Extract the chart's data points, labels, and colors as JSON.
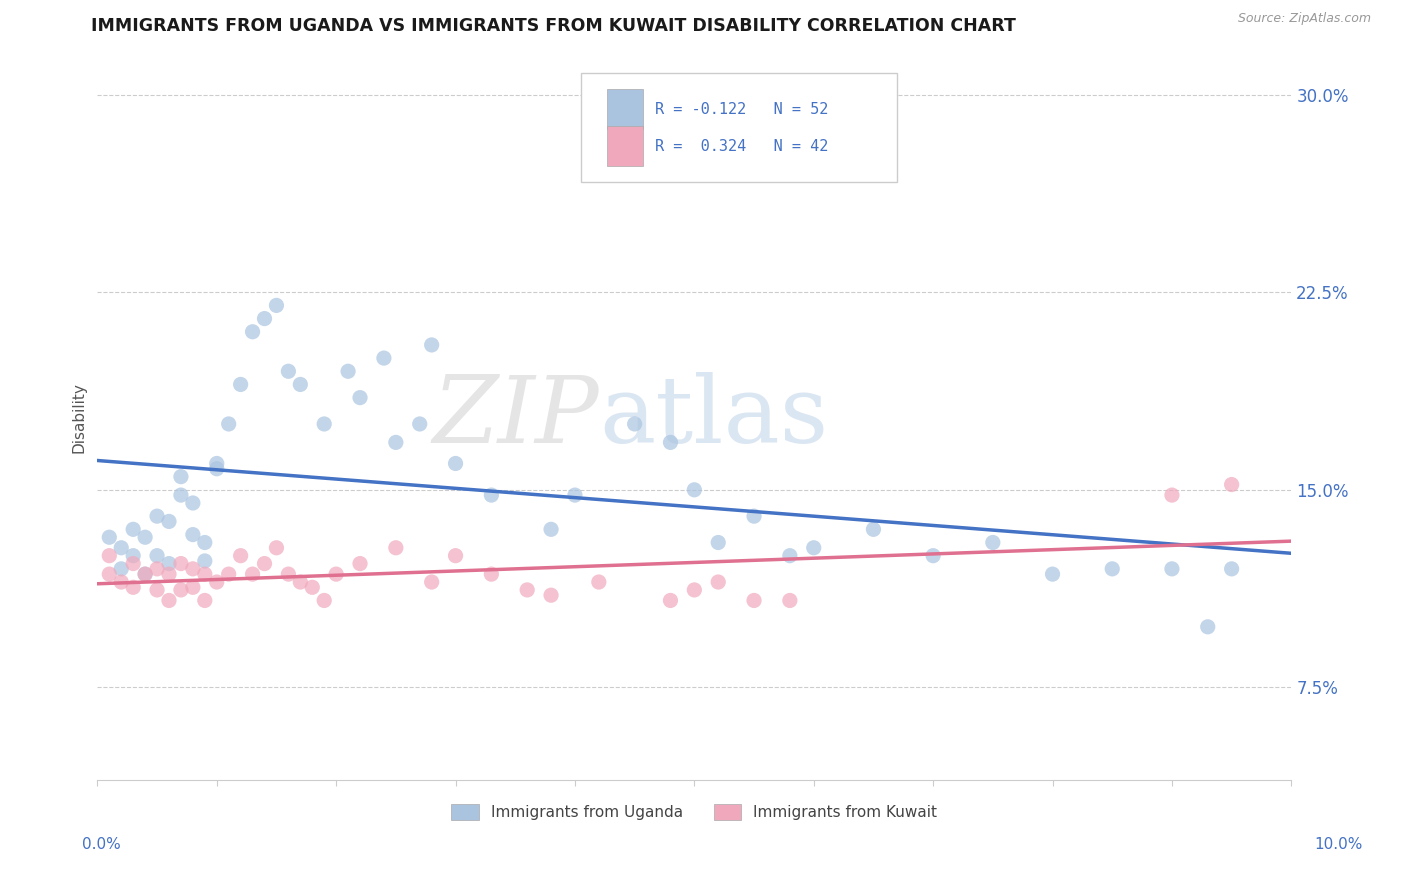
{
  "title": "IMMIGRANTS FROM UGANDA VS IMMIGRANTS FROM KUWAIT DISABILITY CORRELATION CHART",
  "source": "Source: ZipAtlas.com",
  "ylabel": "Disability",
  "xmin": 0.0,
  "xmax": 0.1,
  "ymin": 0.04,
  "ymax": 0.315,
  "ytick_vals": [
    0.075,
    0.15,
    0.225,
    0.3
  ],
  "ytick_labels": [
    "7.5%",
    "15.0%",
    "22.5%",
    "30.0%"
  ],
  "legend_label1": "Immigrants from Uganda",
  "legend_label2": "Immigrants from Kuwait",
  "color_uganda": "#aac4e0",
  "color_kuwait": "#f0a8bc",
  "color_line_uganda": "#4472c4",
  "color_line_kuwait": "#e07090",
  "watermark_zip": "ZIP",
  "watermark_atlas": "atlas",
  "uganda_x": [
    0.001,
    0.002,
    0.002,
    0.003,
    0.003,
    0.004,
    0.004,
    0.005,
    0.005,
    0.006,
    0.006,
    0.007,
    0.007,
    0.008,
    0.008,
    0.009,
    0.009,
    0.01,
    0.01,
    0.011,
    0.012,
    0.013,
    0.014,
    0.015,
    0.016,
    0.017,
    0.019,
    0.021,
    0.022,
    0.024,
    0.025,
    0.027,
    0.03,
    0.033,
    0.038,
    0.04,
    0.045,
    0.05,
    0.055,
    0.06,
    0.065,
    0.07,
    0.075,
    0.08,
    0.085,
    0.09,
    0.093,
    0.095,
    0.048,
    0.052,
    0.058,
    0.028
  ],
  "uganda_y": [
    0.132,
    0.128,
    0.12,
    0.135,
    0.125,
    0.132,
    0.118,
    0.14,
    0.125,
    0.138,
    0.122,
    0.155,
    0.148,
    0.145,
    0.133,
    0.13,
    0.123,
    0.16,
    0.158,
    0.175,
    0.19,
    0.21,
    0.215,
    0.22,
    0.195,
    0.19,
    0.175,
    0.195,
    0.185,
    0.2,
    0.168,
    0.175,
    0.16,
    0.148,
    0.135,
    0.148,
    0.175,
    0.15,
    0.14,
    0.128,
    0.135,
    0.125,
    0.13,
    0.118,
    0.12,
    0.12,
    0.098,
    0.12,
    0.168,
    0.13,
    0.125,
    0.205
  ],
  "kuwait_x": [
    0.001,
    0.001,
    0.002,
    0.003,
    0.003,
    0.004,
    0.005,
    0.005,
    0.006,
    0.006,
    0.007,
    0.007,
    0.008,
    0.008,
    0.009,
    0.009,
    0.01,
    0.011,
    0.012,
    0.013,
    0.014,
    0.015,
    0.016,
    0.017,
    0.018,
    0.019,
    0.02,
    0.022,
    0.025,
    0.028,
    0.03,
    0.033,
    0.036,
    0.038,
    0.042,
    0.048,
    0.05,
    0.052,
    0.055,
    0.058,
    0.09,
    0.095
  ],
  "kuwait_y": [
    0.125,
    0.118,
    0.115,
    0.122,
    0.113,
    0.118,
    0.12,
    0.112,
    0.118,
    0.108,
    0.122,
    0.112,
    0.12,
    0.113,
    0.118,
    0.108,
    0.115,
    0.118,
    0.125,
    0.118,
    0.122,
    0.128,
    0.118,
    0.115,
    0.113,
    0.108,
    0.118,
    0.122,
    0.128,
    0.115,
    0.125,
    0.118,
    0.112,
    0.11,
    0.115,
    0.108,
    0.112,
    0.115,
    0.108,
    0.108,
    0.148,
    0.152
  ]
}
